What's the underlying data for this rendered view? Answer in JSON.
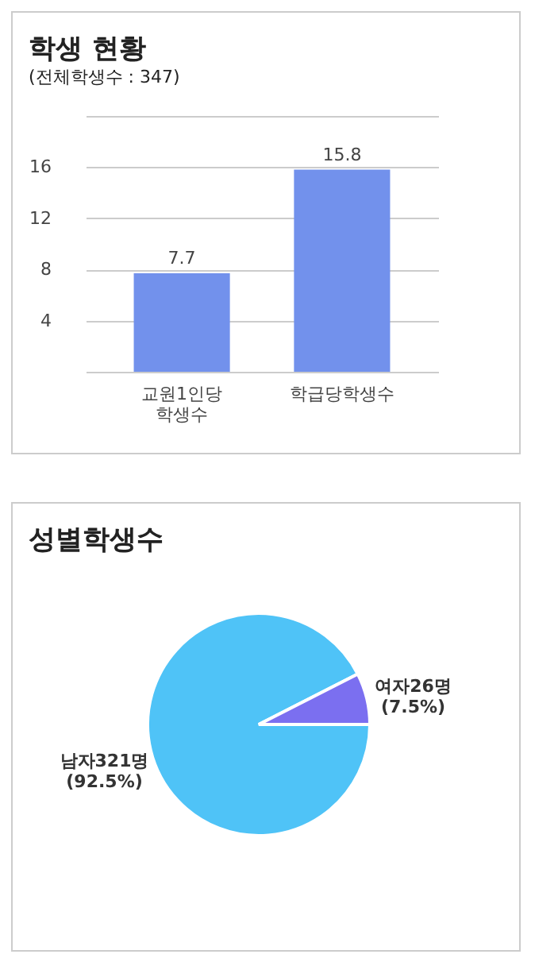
{
  "chart_data": [
    {
      "type": "bar",
      "title": "학생 현황",
      "subtitle": "(전체학생수 : 347)",
      "categories": [
        "교원1인당 학생수",
        "학급당학생수"
      ],
      "values": [
        7.7,
        15.8
      ],
      "color": "#7291ec",
      "ylim": [
        0,
        20
      ],
      "yticks": [
        {
          "value": 0,
          "label": null
        },
        4,
        8,
        12,
        16,
        {
          "value": 20,
          "label": null
        }
      ],
      "grid": "y",
      "data_labels": true
    },
    {
      "type": "pie",
      "title": "성별학생수",
      "categories": [
        "남자",
        "여자"
      ],
      "values": [
        321,
        26
      ],
      "colors": [
        "#4fc3f7",
        "#7b6ff0"
      ],
      "value_labels": [
        "321명 (92.5%)",
        "26명 (7.5%)"
      ]
    }
  ]
}
